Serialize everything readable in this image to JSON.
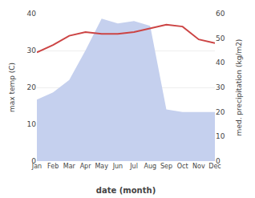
{
  "chart_data": {
    "type": "line",
    "categories": [
      "Jan",
      "Feb",
      "Mar",
      "Apr",
      "May",
      "Jun",
      "Jul",
      "Aug",
      "Sep",
      "Oct",
      "Nov",
      "Dec"
    ],
    "series": [
      {
        "type": "area",
        "axis": "y2",
        "color": "#c5d0ee",
        "values": [
          25,
          28,
          33,
          45,
          58,
          56,
          57,
          55,
          21,
          20,
          20,
          20
        ]
      },
      {
        "type": "line",
        "color": "#cc4444",
        "values": [
          29.5,
          31.5,
          34.0,
          35.0,
          34.5,
          34.5,
          35.0,
          36.0,
          37.0,
          36.5,
          33.0,
          32.0
        ]
      }
    ],
    "xlabel": "date (month)",
    "ylabel": "max temp (C)",
    "y2label": "med. precipitation (kg/m2)",
    "ylim": [
      0,
      40
    ],
    "yticks": [
      0,
      10,
      20,
      30,
      40
    ],
    "y2lim": [
      0,
      60
    ],
    "y2ticks": [
      0,
      10,
      20,
      30,
      40,
      50,
      60
    ],
    "grid": true
  }
}
